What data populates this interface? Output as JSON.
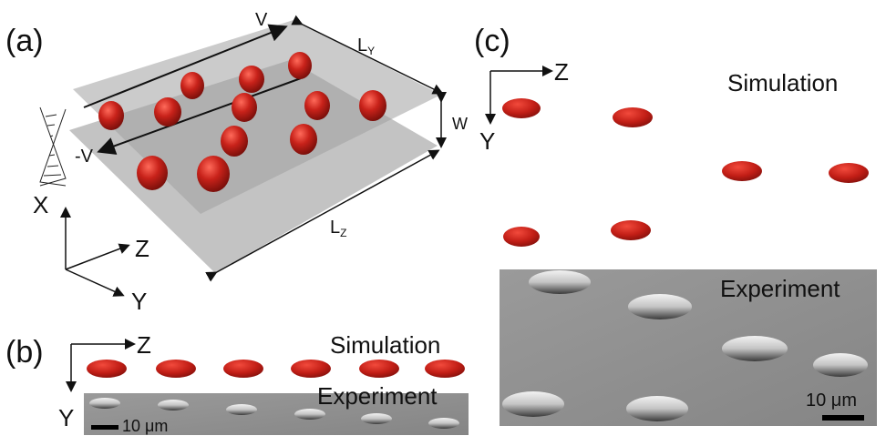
{
  "panel_a": {
    "label": "(a)",
    "velocity_top": "V",
    "velocity_bottom": "-V",
    "length_y": "L",
    "length_y_sub": "Y",
    "length_z": "L",
    "length_z_sub": "Z",
    "width": "W",
    "axis_x": "X",
    "axis_y": "Y",
    "axis_z": "Z"
  },
  "panel_b": {
    "label": "(b)",
    "simulation": "Simulation",
    "experiment": "Experiment",
    "scale_bar": "10 μm",
    "axis_z": "Z",
    "axis_y": "Y"
  },
  "panel_c": {
    "label": "(c)",
    "simulation": "Simulation",
    "experiment": "Experiment",
    "scale_bar": "10 μm",
    "axis_z": "Z",
    "axis_y": "Y"
  },
  "colors": {
    "cell_red": "#c0201a",
    "plate_gray": "#b8b8b8",
    "micrograph_gray": "#8e8e8e"
  }
}
